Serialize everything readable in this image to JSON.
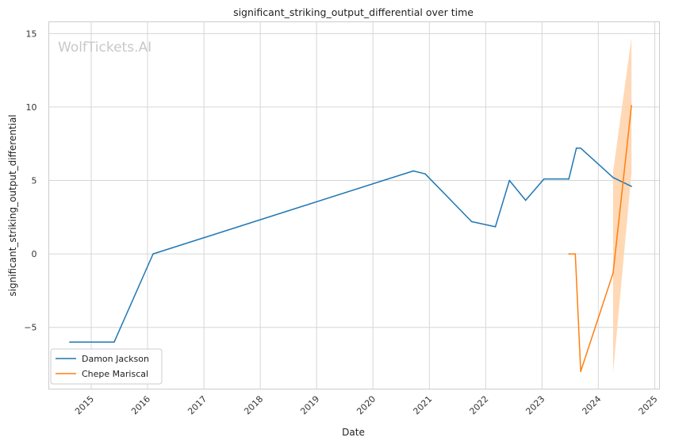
{
  "chart_data": {
    "type": "line",
    "title": "significant_striking_output_differential over time",
    "xlabel": "Date",
    "ylabel": "significant_striking_output_differential",
    "watermark": "WolfTickets.AI",
    "x_ticks": [
      "2015",
      "2016",
      "2017",
      "2018",
      "2019",
      "2020",
      "2021",
      "2022",
      "2023",
      "2024",
      "2025"
    ],
    "y_ticks": [
      15,
      10,
      5,
      0,
      -5
    ],
    "y_tick_labels": [
      "15",
      "10",
      "5",
      "0",
      "−5"
    ],
    "xlim": [
      "2014-04-01",
      "2025-02-01"
    ],
    "ylim": [
      -9.2,
      15.8
    ],
    "grid": true,
    "legend_position": "lower-left",
    "series": [
      {
        "name": "Damon Jackson",
        "color": "#1f77b4",
        "points": [
          {
            "x": "2014-08-15",
            "y": -6.0
          },
          {
            "x": "2015-05-30",
            "y": -6.0
          },
          {
            "x": "2016-02-06",
            "y": 0.0
          },
          {
            "x": "2020-09-19",
            "y": 5.65
          },
          {
            "x": "2020-12-05",
            "y": 5.45
          },
          {
            "x": "2021-10-02",
            "y": 2.2
          },
          {
            "x": "2022-03-05",
            "y": 1.85
          },
          {
            "x": "2022-06-04",
            "y": 5.0
          },
          {
            "x": "2022-09-17",
            "y": 3.65
          },
          {
            "x": "2023-01-14",
            "y": 5.1
          },
          {
            "x": "2023-06-24",
            "y": 5.1
          },
          {
            "x": "2023-08-12",
            "y": 7.2
          },
          {
            "x": "2023-09-09",
            "y": 7.2
          },
          {
            "x": "2024-04-06",
            "y": 5.2
          },
          {
            "x": "2024-08-03",
            "y": 4.6
          }
        ]
      },
      {
        "name": "Chepe Mariscal",
        "color": "#ff7f0e",
        "band_color": "#ffd4ad",
        "points": [
          {
            "x": "2023-06-24",
            "y": 0.0
          },
          {
            "x": "2023-08-05",
            "y": 0.0
          },
          {
            "x": "2023-09-09",
            "y": -8.0
          },
          {
            "x": "2024-04-06",
            "y": -1.3
          },
          {
            "x": "2024-08-03",
            "y": 10.1
          }
        ],
        "band": [
          {
            "x": "2024-04-06",
            "low": -8.1,
            "high": 5.6
          },
          {
            "x": "2024-08-03",
            "low": 5.5,
            "high": 14.7
          }
        ]
      }
    ]
  }
}
